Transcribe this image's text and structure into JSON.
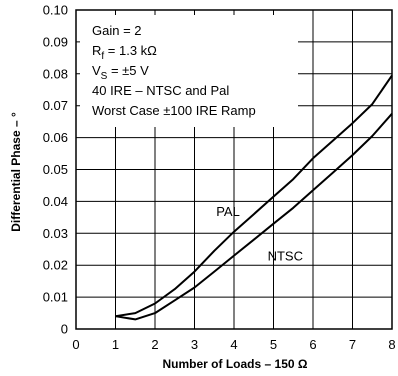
{
  "chart_data": {
    "type": "line",
    "title": "",
    "xlabel": "Number of Loads – 150 Ω",
    "ylabel": "Differential Phase – °",
    "xlim": [
      0,
      8
    ],
    "ylim": [
      0,
      0.1
    ],
    "x_ticks": [
      "0",
      "1",
      "2",
      "3",
      "4",
      "5",
      "6",
      "7",
      "8"
    ],
    "y_ticks": [
      "0",
      "0.01",
      "0.02",
      "0.03",
      "0.04",
      "0.05",
      "0.06",
      "0.07",
      "0.08",
      "0.09",
      "0.10"
    ],
    "grid": true,
    "annotations": [
      {
        "lines": [
          {
            "parts": [
              {
                "t": "Gain = 2"
              }
            ]
          },
          {
            "parts": [
              {
                "t": "R"
              },
              {
                "t": "f",
                "sub": true
              },
              {
                "t": " = 1.3 kΩ"
              }
            ]
          },
          {
            "parts": [
              {
                "t": "V"
              },
              {
                "t": "S",
                "sub": true
              },
              {
                "t": " = ±5 V"
              }
            ]
          },
          {
            "parts": [
              {
                "t": "40 IRE – NTSC and Pal"
              }
            ]
          },
          {
            "parts": [
              {
                "t": "Worst Case ±100 IRE Ramp"
              }
            ]
          }
        ]
      }
    ],
    "series": [
      {
        "name": "PAL",
        "x": [
          1,
          1.5,
          2,
          2.5,
          3,
          3.5,
          4,
          4.5,
          5,
          5.5,
          6,
          6.5,
          7,
          7.5,
          8
        ],
        "y": [
          0.004,
          0.005,
          0.008,
          0.0125,
          0.018,
          0.0245,
          0.0305,
          0.036,
          0.0415,
          0.047,
          0.0535,
          0.059,
          0.0645,
          0.0705,
          0.0795
        ]
      },
      {
        "name": "NTSC",
        "x": [
          1,
          1.5,
          2,
          2.5,
          3,
          3.5,
          4,
          4.5,
          5,
          5.5,
          6,
          6.5,
          7,
          7.5,
          8
        ],
        "y": [
          0.004,
          0.003,
          0.005,
          0.009,
          0.013,
          0.018,
          0.023,
          0.028,
          0.033,
          0.038,
          0.0435,
          0.049,
          0.0545,
          0.0605,
          0.0675
        ]
      }
    ]
  }
}
